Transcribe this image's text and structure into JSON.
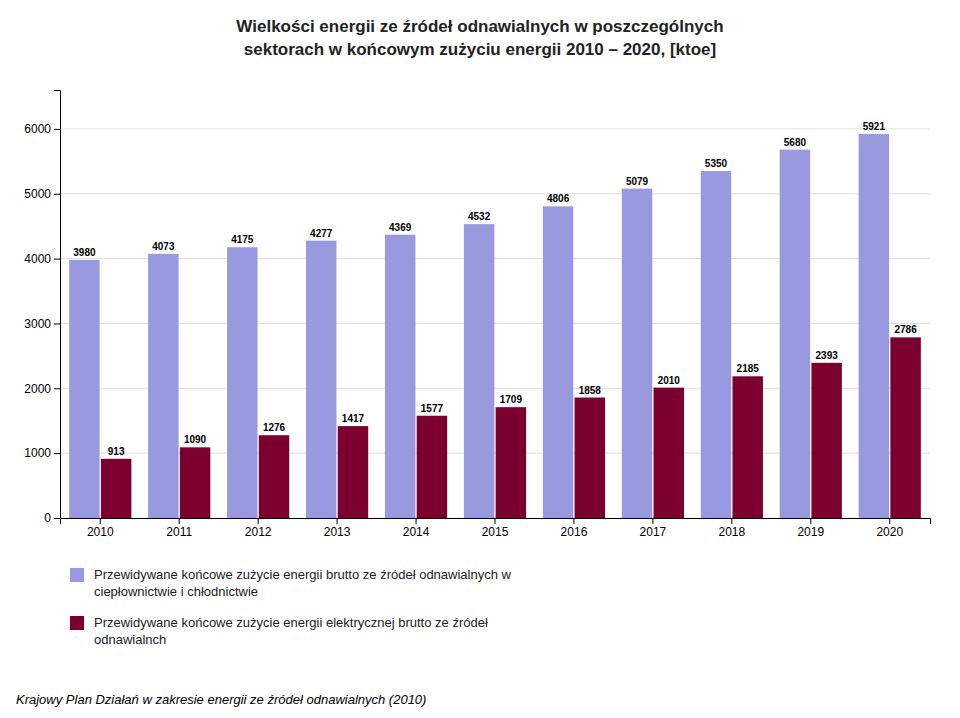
{
  "chart_data": {
    "type": "bar",
    "title": "Wielkości energii ze źródeł odnawialnych w poszczególnych\nsektorach w końcowym zużyciu energii 2010 – 2020, [ktoe]",
    "categories": [
      "2010",
      "2011",
      "2012",
      "2013",
      "2014",
      "2015",
      "2016",
      "2017",
      "2018",
      "2019",
      "2020"
    ],
    "series": [
      {
        "name": "Przewidywane końcowe zużycie energii brutto ze źródeł odnawialnych w\nciepłownictwie i chłodnictwie",
        "color": "#9999e0",
        "values": [
          3980,
          4073,
          4175,
          4277,
          4369,
          4532,
          4806,
          5079,
          5350,
          5680,
          5921
        ]
      },
      {
        "name": "Przewidywane końcowe zużycie energii elektrycznej brutto ze źródeł\nodnawialnch",
        "color": "#7b0030",
        "values": [
          913,
          1090,
          1276,
          1417,
          1577,
          1709,
          1858,
          2010,
          2185,
          2393,
          2786
        ]
      }
    ],
    "ylim": [
      0,
      6600
    ],
    "yticks": [
      0,
      1000,
      2000,
      3000,
      4000,
      5000,
      6000
    ],
    "grid": true,
    "data_labels": true,
    "legend": "bottom",
    "footnote": "Krajowy Plan Działań w zakresie energii ze źródeł odnawialnych (2010)"
  }
}
